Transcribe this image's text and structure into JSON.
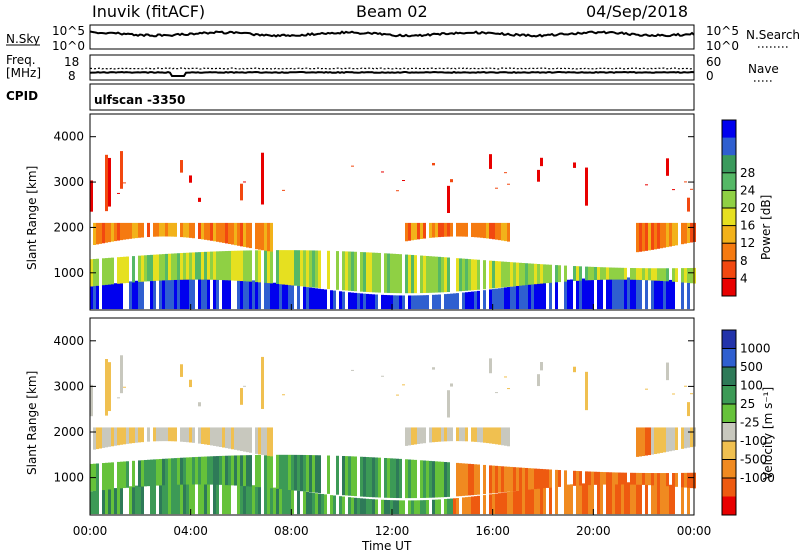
{
  "header": {
    "station": "Inuvik (fitACF)",
    "beam": "Beam 02",
    "date": "04/Sep/2018"
  },
  "panels": {
    "nsky_label": "N.Sky",
    "nsky_ticks": [
      "10^5",
      "10^0"
    ],
    "nsearch_label": "N.Search",
    "nsearch_ticks": [
      "10^5",
      "10^0"
    ],
    "freq_label_1": "Freq.",
    "freq_label_2": "[MHz]",
    "freq_ticks": [
      "18",
      "8"
    ],
    "nave_label": "Nave",
    "nave_ticks": [
      "60",
      "0"
    ],
    "cpid_label": "CPID",
    "cpid_value": "ulfscan -3350"
  },
  "chart_data": [
    {
      "type": "heatmap",
      "quantity": "Power",
      "xlabel": "",
      "ylabel": "Slant Range [km]",
      "ylim": [
        180,
        4500
      ],
      "y_ticks": [
        "1000",
        "2000",
        "3000",
        "4000"
      ],
      "colorbar_label": "Power [dB]",
      "colorbar_ticks": [
        "4",
        "8",
        "12",
        "16",
        "20",
        "24",
        "28"
      ],
      "colorbar_colors": [
        "#0000ee",
        "#2f5fd0",
        "#3a9a5c",
        "#55b866",
        "#8fd044",
        "#e6e020",
        "#f2b21a",
        "#f57a10",
        "#f24810",
        "#e80000"
      ]
    },
    {
      "type": "heatmap",
      "quantity": "Velocity",
      "xlabel": "Time UT",
      "ylabel": "Slant Range [km]",
      "ylim": [
        180,
        4500
      ],
      "y_ticks": [
        "1000",
        "2000",
        "3000",
        "4000"
      ],
      "x_ticks": [
        "00:00",
        "04:00",
        "08:00",
        "12:00",
        "16:00",
        "20:00",
        "00:00"
      ],
      "colorbar_label": "Velocity [m s⁻¹]",
      "colorbar_ticks": [
        "1000",
        "500",
        "100",
        "25",
        "-25",
        "-100",
        "-500",
        "-1000"
      ],
      "colorbar_colors": [
        "#2233aa",
        "#2f5fd0",
        "#2e7a58",
        "#3c9a56",
        "#66c23a",
        "#c8c8be",
        "#f0c050",
        "#f08a20",
        "#ee5a10",
        "#e80000"
      ]
    }
  ]
}
